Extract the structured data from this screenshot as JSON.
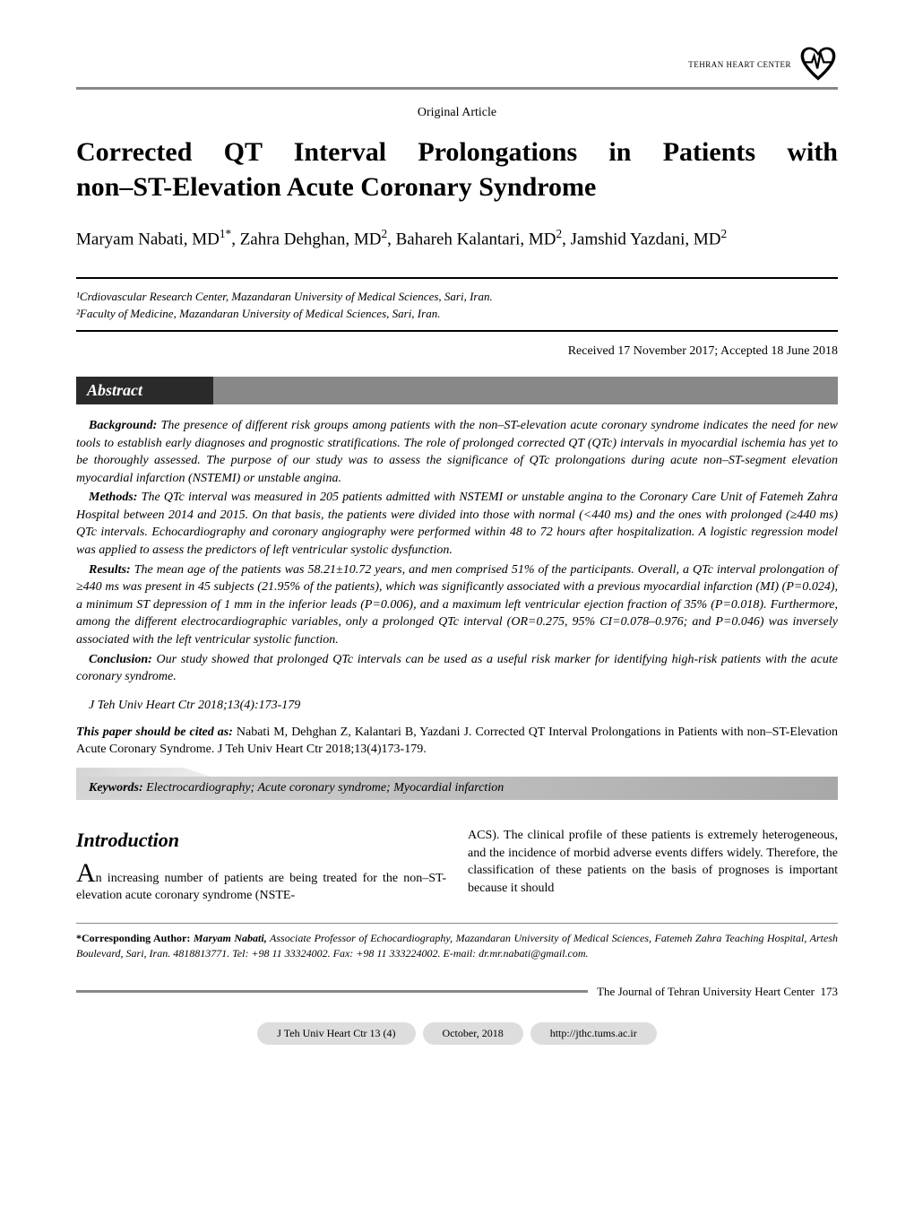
{
  "header": {
    "journal_label": "TEHRAN HEART CENTER"
  },
  "article_type": "Original Article",
  "title_line1": "Corrected QT Interval Prolongations in Patients with",
  "title_line2": "non–ST-Elevation Acute Coronary Syndrome",
  "authors_html": "Maryam Nabati, MD<sup>1*</sup>, Zahra Dehghan, MD<sup>2</sup>, Bahareh Kalantari, MD<sup>2</sup>, Jamshid Yazdani, MD<sup>2</sup>",
  "affiliations": {
    "a1": "¹Crdiovascular Research Center, Mazandaran University of Medical Sciences, Sari, Iran.",
    "a2": "²Faculty of Medicine, Mazandaran University of Medical Sciences, Sari, Iran."
  },
  "dates": "Received 17 November 2017; Accepted 18 June 2018",
  "abstract": {
    "label": "Abstract",
    "background_label": "Background:",
    "background": " The presence of different risk groups among patients with the non–ST-elevation acute coronary syndrome indicates the need for new tools to establish early diagnoses and prognostic stratifications. The role of prolonged corrected QT (QTc) intervals in myocardial ischemia has yet to be thoroughly assessed. The purpose of our study was to assess the significance of QTc prolongations during acute non–ST-segment elevation myocardial infarction (NSTEMI) or unstable angina.",
    "methods_label": "Methods:",
    "methods": " The QTc interval was measured in 205 patients admitted with NSTEMI or unstable angina to the Coronary Care Unit of Fatemeh Zahra Hospital between 2014 and 2015. On that basis, the patients were divided into those with normal (<440 ms) and the ones with prolonged (≥440 ms) QTc intervals. Echocardiography and coronary angiography were performed within 48 to 72 hours after hospitalization. A logistic regression model was applied to assess the predictors of left ventricular systolic dysfunction.",
    "results_label": "Results:",
    "results": " The mean age of the patients was 58.21±10.72 years, and men comprised 51% of the participants. Overall, a QTc interval prolongation of ≥440 ms was present in 45 subjects (21.95% of the patients), which was significantly associated with a previous myocardial infarction (MI) (P=0.024), a minimum ST depression of 1 mm in the inferior leads (P=0.006), and a maximum left ventricular ejection fraction of 35% (P=0.018). Furthermore, among the different electrocardiographic variables, only a prolonged QTc interval (OR=0.275, 95% CI=0.078–0.976; and P=0.046) was inversely associated with the left ventricular systolic function.",
    "conclusion_label": "Conclusion:",
    "conclusion": " Our study showed that prolonged QTc intervals can be used as a useful risk marker for identifying high-risk patients with the acute coronary syndrome."
  },
  "citation_line": "J Teh Univ Heart Ctr 2018;13(4):173-179",
  "cite_as": {
    "label": "This paper should be cited as:",
    "text": " Nabati M, Dehghan Z, Kalantari B, Yazdani J. Corrected QT Interval Prolongations in Patients with non–ST-Elevation Acute Coronary Syndrome. J Teh Univ Heart Ctr 2018;13(4)173-179."
  },
  "keywords": {
    "label": "Keywords:",
    "text": " Electrocardiography; Acute coronary syndrome; Myocardial infarction"
  },
  "intro": {
    "heading": "Introduction",
    "col1": "n increasing number of patients are being treated for the non–ST-elevation acute coronary syndrome (NSTE-",
    "col2": "ACS). The clinical profile of these patients is extremely heterogeneous, and the incidence of morbid adverse events differs widely. Therefore, the classification of these patients on the basis of prognoses is important because it should"
  },
  "footnote": {
    "label": "*Corresponding Author:",
    "name": " Maryam Nabati,",
    "text": " Associate Professor of Echocardiography, Mazandaran University of Medical Sciences, Fatemeh Zahra Teaching Hospital, Artesh Boulevard, Sari, Iran. 4818813771. Tel: +98 11 33324002. Fax: +98 11 333224002. E-mail: dr.mr.nabati@gmail.com."
  },
  "footer": {
    "journal": "The Journal of Tehran University Heart Center",
    "page": "173",
    "pill1": "J Teh Univ Heart Ctr 13 (4)",
    "pill2": "October, 2018",
    "pill3": "http://jthc.tums.ac.ir"
  }
}
